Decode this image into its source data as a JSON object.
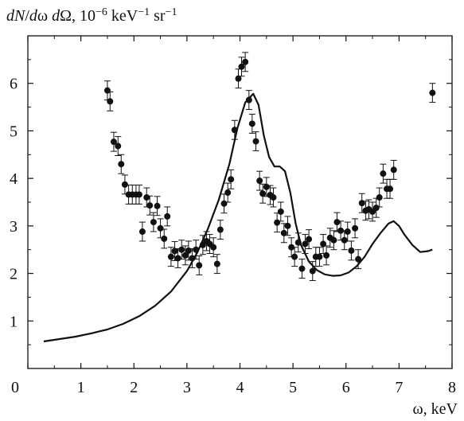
{
  "chart_data": {
    "type": "scatter",
    "title": "",
    "ylabel": {
      "parts": [
        {
          "text": "dN",
          "italic": true
        },
        {
          "text": "/",
          "italic": false
        },
        {
          "text": "d",
          "italic": true
        },
        {
          "text": "ω ",
          "italic": false
        },
        {
          "text": "d",
          "italic": true
        },
        {
          "text": "Ω, 10",
          "italic": false
        },
        {
          "text": "−6",
          "italic": false,
          "sup": true
        },
        {
          "text": " keV",
          "italic": false
        },
        {
          "text": "−1",
          "italic": false,
          "sup": true
        },
        {
          "text": " sr",
          "italic": false
        },
        {
          "text": "−1",
          "italic": false,
          "sup": true
        }
      ]
    },
    "xlabel": "ω, keV",
    "xlim": [
      0,
      8
    ],
    "ylim": [
      0,
      7
    ],
    "xticks": [
      0,
      1,
      2,
      3,
      4,
      5,
      6,
      7,
      8
    ],
    "yticks": [
      1,
      2,
      3,
      4,
      5,
      6
    ],
    "xtick_labels": [
      "0",
      "1",
      "2",
      "3",
      "4",
      "5",
      "6",
      "7",
      "8"
    ],
    "ytick_labels": [
      "1",
      "2",
      "3",
      "4",
      "5",
      "6"
    ],
    "grid": false,
    "series": [
      {
        "kind": "points_with_errorbars",
        "color": "#111111",
        "error": 0.2,
        "points": [
          [
            1.5,
            5.85
          ],
          [
            1.55,
            5.62
          ],
          [
            1.62,
            4.77
          ],
          [
            1.7,
            4.68
          ],
          [
            1.76,
            4.3
          ],
          [
            1.83,
            3.87
          ],
          [
            1.9,
            3.66
          ],
          [
            1.97,
            3.66
          ],
          [
            2.04,
            3.66
          ],
          [
            2.1,
            3.66
          ],
          [
            2.16,
            2.88
          ],
          [
            2.24,
            3.6
          ],
          [
            2.3,
            3.43
          ],
          [
            2.37,
            3.08
          ],
          [
            2.44,
            3.42
          ],
          [
            2.5,
            2.95
          ],
          [
            2.57,
            2.73
          ],
          [
            2.63,
            3.2
          ],
          [
            2.7,
            2.35
          ],
          [
            2.77,
            2.47
          ],
          [
            2.83,
            2.32
          ],
          [
            2.9,
            2.5
          ],
          [
            2.97,
            2.38
          ],
          [
            3.03,
            2.48
          ],
          [
            3.1,
            2.32
          ],
          [
            3.17,
            2.5
          ],
          [
            3.23,
            2.17
          ],
          [
            3.3,
            2.6
          ],
          [
            3.37,
            2.68
          ],
          [
            3.43,
            2.62
          ],
          [
            3.5,
            2.55
          ],
          [
            3.57,
            2.2
          ],
          [
            3.63,
            2.92
          ],
          [
            3.7,
            3.47
          ],
          [
            3.77,
            3.7
          ],
          [
            3.83,
            3.98
          ],
          [
            3.9,
            5.02
          ],
          [
            3.97,
            6.1
          ],
          [
            4.03,
            6.35
          ],
          [
            4.1,
            6.45
          ],
          [
            4.17,
            5.65
          ],
          [
            4.23,
            5.15
          ],
          [
            4.3,
            4.78
          ],
          [
            4.37,
            3.95
          ],
          [
            4.43,
            3.68
          ],
          [
            4.5,
            3.82
          ],
          [
            4.57,
            3.65
          ],
          [
            4.63,
            3.6
          ],
          [
            4.7,
            3.07
          ],
          [
            4.77,
            3.3
          ],
          [
            4.83,
            2.85
          ],
          [
            4.9,
            3.0
          ],
          [
            4.97,
            2.55
          ],
          [
            5.03,
            2.35
          ],
          [
            5.1,
            2.65
          ],
          [
            5.17,
            2.1
          ],
          [
            5.23,
            2.62
          ],
          [
            5.3,
            2.72
          ],
          [
            5.37,
            2.05
          ],
          [
            5.43,
            2.35
          ],
          [
            5.5,
            2.35
          ],
          [
            5.57,
            2.62
          ],
          [
            5.63,
            2.38
          ],
          [
            5.7,
            2.75
          ],
          [
            5.77,
            2.7
          ],
          [
            5.83,
            3.08
          ],
          [
            5.9,
            2.9
          ],
          [
            5.97,
            2.7
          ],
          [
            6.03,
            2.88
          ],
          [
            6.1,
            2.48
          ],
          [
            6.17,
            2.95
          ],
          [
            6.23,
            2.3
          ],
          [
            6.3,
            3.48
          ],
          [
            6.37,
            3.32
          ],
          [
            6.43,
            3.35
          ],
          [
            6.5,
            3.3
          ],
          [
            6.57,
            3.38
          ],
          [
            6.63,
            3.6
          ],
          [
            6.7,
            4.1
          ],
          [
            6.77,
            3.78
          ],
          [
            6.83,
            3.78
          ],
          [
            6.9,
            4.18
          ],
          [
            7.63,
            5.8
          ]
        ]
      },
      {
        "kind": "curve",
        "color": "#111111",
        "points": [
          [
            0.3,
            0.57
          ],
          [
            0.6,
            0.62
          ],
          [
            0.9,
            0.67
          ],
          [
            1.2,
            0.74
          ],
          [
            1.5,
            0.82
          ],
          [
            1.8,
            0.94
          ],
          [
            2.1,
            1.1
          ],
          [
            2.4,
            1.32
          ],
          [
            2.7,
            1.62
          ],
          [
            3.0,
            2.05
          ],
          [
            3.2,
            2.45
          ],
          [
            3.4,
            2.95
          ],
          [
            3.6,
            3.55
          ],
          [
            3.8,
            4.3
          ],
          [
            3.95,
            5.05
          ],
          [
            4.1,
            5.6
          ],
          [
            4.25,
            5.78
          ],
          [
            4.35,
            5.55
          ],
          [
            4.45,
            4.9
          ],
          [
            4.55,
            4.45
          ],
          [
            4.65,
            4.25
          ],
          [
            4.75,
            4.25
          ],
          [
            4.85,
            4.15
          ],
          [
            4.95,
            3.7
          ],
          [
            5.05,
            3.05
          ],
          [
            5.15,
            2.6
          ],
          [
            5.3,
            2.25
          ],
          [
            5.45,
            2.07
          ],
          [
            5.6,
            1.98
          ],
          [
            5.75,
            1.95
          ],
          [
            5.9,
            1.96
          ],
          [
            6.05,
            2.02
          ],
          [
            6.2,
            2.15
          ],
          [
            6.35,
            2.35
          ],
          [
            6.5,
            2.62
          ],
          [
            6.65,
            2.85
          ],
          [
            6.8,
            3.05
          ],
          [
            6.9,
            3.1
          ],
          [
            7.0,
            3.0
          ],
          [
            7.1,
            2.82
          ],
          [
            7.25,
            2.6
          ],
          [
            7.4,
            2.45
          ],
          [
            7.55,
            2.47
          ],
          [
            7.63,
            2.5
          ]
        ]
      }
    ]
  }
}
